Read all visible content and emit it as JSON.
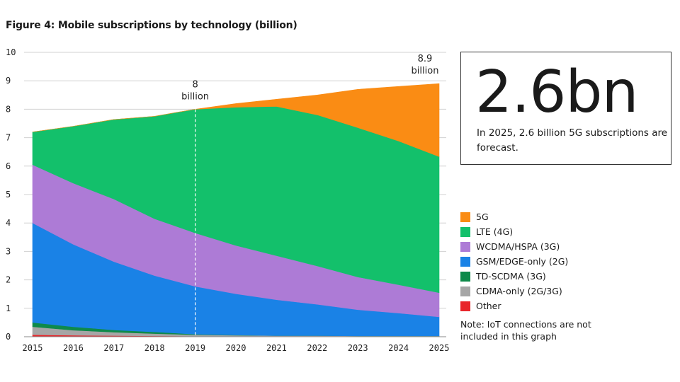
{
  "chart_data": {
    "type": "area",
    "stacked": true,
    "title": "Figure 4: Mobile subscriptions by technology (billion)",
    "xlabel": "",
    "ylabel": "",
    "x": [
      2015,
      2016,
      2017,
      2018,
      2019,
      2020,
      2021,
      2022,
      2023,
      2024,
      2025
    ],
    "ylim": [
      0,
      10
    ],
    "yticks": [
      0,
      1,
      2,
      3,
      4,
      5,
      6,
      7,
      8,
      9,
      10
    ],
    "grid": true,
    "legend_position": "right",
    "series": [
      {
        "name": "Other",
        "color": "#e8252a",
        "values": [
          0.07,
          0.05,
          0.04,
          0.03,
          0.02,
          0.02,
          0.02,
          0.02,
          0.02,
          0.02,
          0.02
        ]
      },
      {
        "name": "CDMA-only (2G/3G)",
        "color": "#a6a6a6",
        "values": [
          0.28,
          0.18,
          0.12,
          0.08,
          0.05,
          0.03,
          0.02,
          0.02,
          0.01,
          0.01,
          0.01
        ]
      },
      {
        "name": "TD-SCDMA (3G)",
        "color": "#0e8a4a",
        "values": [
          0.15,
          0.12,
          0.08,
          0.06,
          0.02,
          0.01,
          0.0,
          0.0,
          0.0,
          0.0,
          0.0
        ]
      },
      {
        "name": "GSM/EDGE-only (2G)",
        "color": "#1a82e6",
        "values": [
          3.5,
          2.9,
          2.4,
          1.98,
          1.68,
          1.45,
          1.26,
          1.1,
          0.92,
          0.8,
          0.67
        ]
      },
      {
        "name": "WCDMA/HSPA (3G)",
        "color": "#ad7bd6",
        "values": [
          2.05,
          2.15,
          2.2,
          2.0,
          1.88,
          1.7,
          1.55,
          1.35,
          1.15,
          1.0,
          0.85
        ]
      },
      {
        "name": "LTE (4G)",
        "color": "#13c06b",
        "values": [
          1.15,
          2.0,
          2.8,
          3.6,
          4.35,
          4.86,
          5.25,
          5.31,
          5.25,
          5.05,
          4.78
        ]
      },
      {
        "name": "5G",
        "color": "#fa8c14",
        "values": [
          0.0,
          0.0,
          0.0,
          0.0,
          0.0,
          0.13,
          0.25,
          0.7,
          1.35,
          1.92,
          2.57
        ]
      }
    ],
    "annotations": [
      {
        "x": 2019,
        "line1": "8",
        "line2": "billion"
      },
      {
        "x": 2025,
        "line1": "8.9",
        "line2": "billion"
      }
    ]
  },
  "callout": {
    "big_value": "2.6bn",
    "text": "In 2025, 2.6 billion 5G subscriptions are forecast."
  },
  "legend": [
    {
      "label": "5G",
      "color": "#fa8c14"
    },
    {
      "label": "LTE (4G)",
      "color": "#13c06b"
    },
    {
      "label": "WCDMA/HSPA (3G)",
      "color": "#ad7bd6"
    },
    {
      "label": "GSM/EDGE-only (2G)",
      "color": "#1a82e6"
    },
    {
      "label": "TD-SCDMA (3G)",
      "color": "#0e8a4a"
    },
    {
      "label": "CDMA-only (2G/3G)",
      "color": "#a6a6a6"
    },
    {
      "label": "Other",
      "color": "#e8252a"
    }
  ],
  "note": "Note: IoT connections are not included in this graph"
}
